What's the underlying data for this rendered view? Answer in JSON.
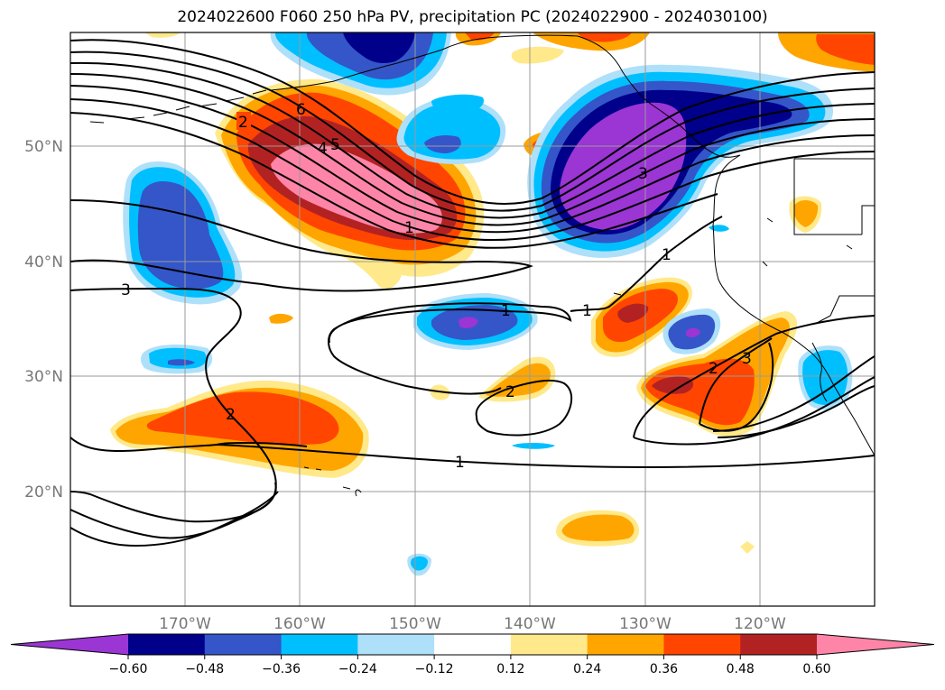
{
  "title": "2024022600 F060 250 hPa PV, precipitation PC (2024022900 - 2024030100)",
  "map": {
    "lon_ticks": [
      "170°W",
      "160°W",
      "150°W",
      "140°W",
      "130°W",
      "120°W"
    ],
    "lat_ticks": [
      "50°N",
      "40°N",
      "30°N",
      "20°N"
    ],
    "contour_labels": [
      "2",
      "6",
      "4",
      "5",
      "1",
      "3",
      "3",
      "1",
      "1",
      "1",
      "2",
      "2",
      "3",
      "2",
      "1"
    ]
  },
  "colorbar": {
    "colors": [
      "#9b35d3",
      "#00008b",
      "#3456c9",
      "#00bfff",
      "#aee0fa",
      "#ffffff",
      "#ffe98a",
      "#ffa500",
      "#ff4500",
      "#b22222",
      "#ff85a8"
    ],
    "tick_labels": [
      "−0.60",
      "−0.48",
      "−0.36",
      "−0.24",
      "−0.12",
      "0.12",
      "0.24",
      "0.36",
      "0.48",
      "0.60"
    ]
  }
}
